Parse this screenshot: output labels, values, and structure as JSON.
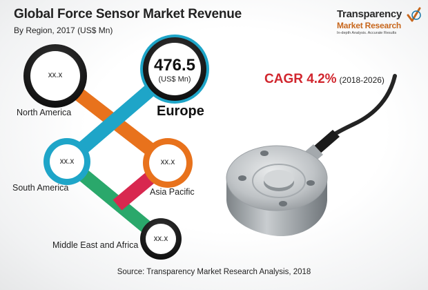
{
  "header": {
    "title": "Global Force Sensor Market Revenue",
    "subtitle": "By Region, 2017 (US$ Mn)"
  },
  "logo": {
    "line1": "Transparency",
    "line2": "Market Research",
    "tagline": "In-depth Analysis. Accurate Results"
  },
  "cagr": {
    "text": "CAGR 4.2%",
    "period": "(2018-2026)"
  },
  "source": "Source: Transparency Market Research Analysis, 2018",
  "colors": {
    "north_america_link": "#e8721c",
    "europe_link": "#1ea5c8",
    "asia_pacific_link": "#d8284f",
    "mea_link": "#2aa86b",
    "cagr": "#d1262e"
  },
  "chart_data": {
    "type": "table",
    "title": "Global Force Sensor Market Revenue",
    "subtitle": "By Region, 2017 (US$ Mn)",
    "regions": [
      {
        "name": "North America",
        "value": "xx.x"
      },
      {
        "name": "Europe",
        "value": "476.5",
        "unit": "(US$ Mn)"
      },
      {
        "name": "South America",
        "value": "xx.x"
      },
      {
        "name": "Asia Pacific",
        "value": "xx.x"
      },
      {
        "name": "Middle East and Africa",
        "value": "xx.x"
      }
    ]
  }
}
